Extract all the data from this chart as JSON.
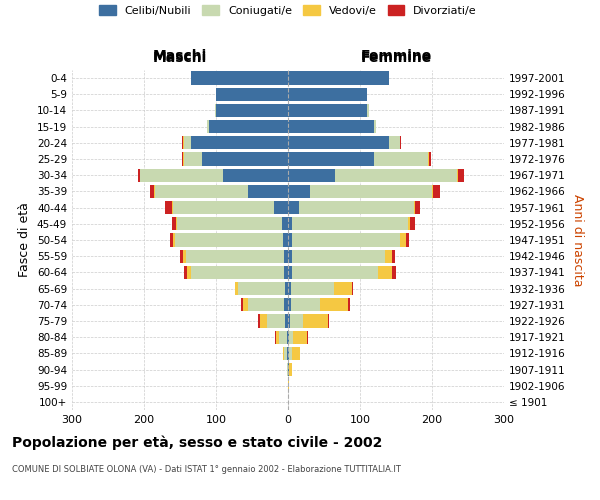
{
  "age_groups": [
    "100+",
    "95-99",
    "90-94",
    "85-89",
    "80-84",
    "75-79",
    "70-74",
    "65-69",
    "60-64",
    "55-59",
    "50-54",
    "45-49",
    "40-44",
    "35-39",
    "30-34",
    "25-29",
    "20-24",
    "15-19",
    "10-14",
    "5-9",
    "0-4"
  ],
  "birth_years": [
    "≤ 1901",
    "1902-1906",
    "1907-1911",
    "1912-1916",
    "1917-1921",
    "1922-1926",
    "1927-1931",
    "1932-1936",
    "1937-1941",
    "1942-1946",
    "1947-1951",
    "1952-1956",
    "1957-1961",
    "1962-1966",
    "1967-1971",
    "1972-1976",
    "1977-1981",
    "1982-1986",
    "1987-1991",
    "1992-1996",
    "1997-2001"
  ],
  "male": {
    "celibi": [
      0,
      0,
      0,
      1,
      2,
      4,
      5,
      4,
      5,
      6,
      7,
      9,
      20,
      55,
      90,
      120,
      135,
      110,
      100,
      100,
      135
    ],
    "coniugati": [
      0,
      0,
      1,
      4,
      10,
      25,
      50,
      65,
      130,
      135,
      150,
      145,
      140,
      130,
      115,
      25,
      10,
      2,
      2,
      0,
      0
    ],
    "vedovi": [
      0,
      0,
      0,
      2,
      5,
      10,
      8,
      4,
      5,
      5,
      3,
      2,
      1,
      1,
      1,
      1,
      1,
      0,
      0,
      0,
      0
    ],
    "divorziati": [
      0,
      0,
      0,
      0,
      1,
      2,
      2,
      1,
      5,
      4,
      4,
      5,
      10,
      5,
      3,
      1,
      1,
      0,
      0,
      0,
      0
    ]
  },
  "female": {
    "nubili": [
      0,
      0,
      1,
      2,
      2,
      3,
      4,
      4,
      5,
      5,
      6,
      6,
      15,
      30,
      65,
      120,
      140,
      120,
      110,
      110,
      140
    ],
    "coniugate": [
      0,
      0,
      1,
      3,
      5,
      18,
      40,
      60,
      120,
      130,
      150,
      160,
      160,
      170,
      170,
      75,
      15,
      2,
      2,
      0,
      0
    ],
    "vedove": [
      0,
      1,
      4,
      12,
      20,
      35,
      40,
      25,
      20,
      10,
      8,
      3,
      2,
      1,
      1,
      1,
      1,
      0,
      0,
      0,
      0
    ],
    "divorziate": [
      0,
      0,
      0,
      0,
      1,
      1,
      2,
      1,
      5,
      4,
      4,
      7,
      7,
      10,
      8,
      2,
      1,
      0,
      0,
      0,
      0
    ]
  },
  "colors": {
    "celibi": "#3d6fa0",
    "coniugati": "#c8d9b0",
    "vedovi": "#f5c842",
    "divorziati": "#cc2222"
  },
  "legend_labels": [
    "Celibi/Nubili",
    "Coniugati/e",
    "Vedovi/e",
    "Divorziati/e"
  ],
  "title": "Popolazione per età, sesso e stato civile - 2002",
  "subtitle": "COMUNE DI SOLBIATE OLONA (VA) - Dati ISTAT 1° gennaio 2002 - Elaborazione TUTTITALIA.IT",
  "xlabel_left": "Maschi",
  "xlabel_right": "Femmine",
  "ylabel_left": "Fasce di età",
  "ylabel_right": "Anni di nascita",
  "xlim": 300,
  "bg_color": "#ffffff",
  "grid_color": "#cccccc"
}
